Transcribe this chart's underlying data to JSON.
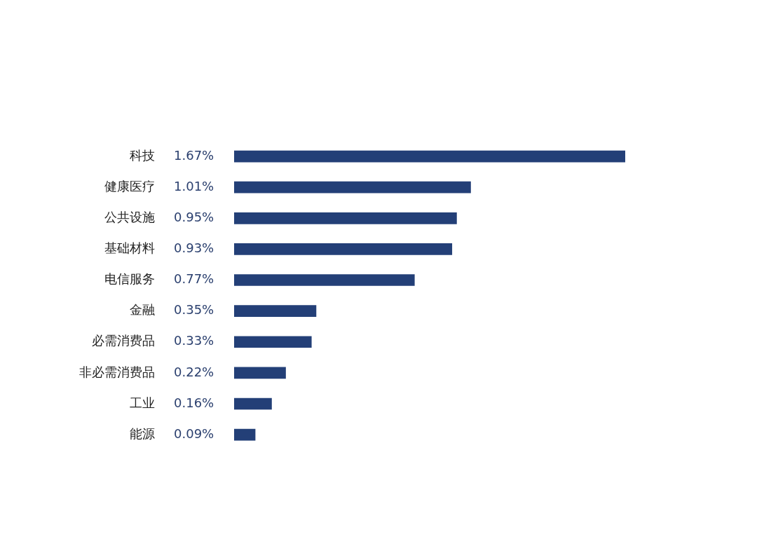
{
  "chart_data": {
    "type": "bar",
    "orientation": "horizontal",
    "categories": [
      "科技",
      "健康医疗",
      "公共设施",
      "基础材料",
      "电信服务",
      "金融",
      "必需消费品",
      "非必需消费品",
      "工业",
      "能源"
    ],
    "values": [
      1.67,
      1.01,
      0.95,
      0.93,
      0.77,
      0.35,
      0.33,
      0.22,
      0.16,
      0.09
    ],
    "value_labels": [
      "1.67%",
      "1.01%",
      "0.95%",
      "0.93%",
      "0.77%",
      "0.35%",
      "0.33%",
      "0.22%",
      "0.16%",
      "0.09%"
    ],
    "color": "#233f77",
    "legend": false
  }
}
